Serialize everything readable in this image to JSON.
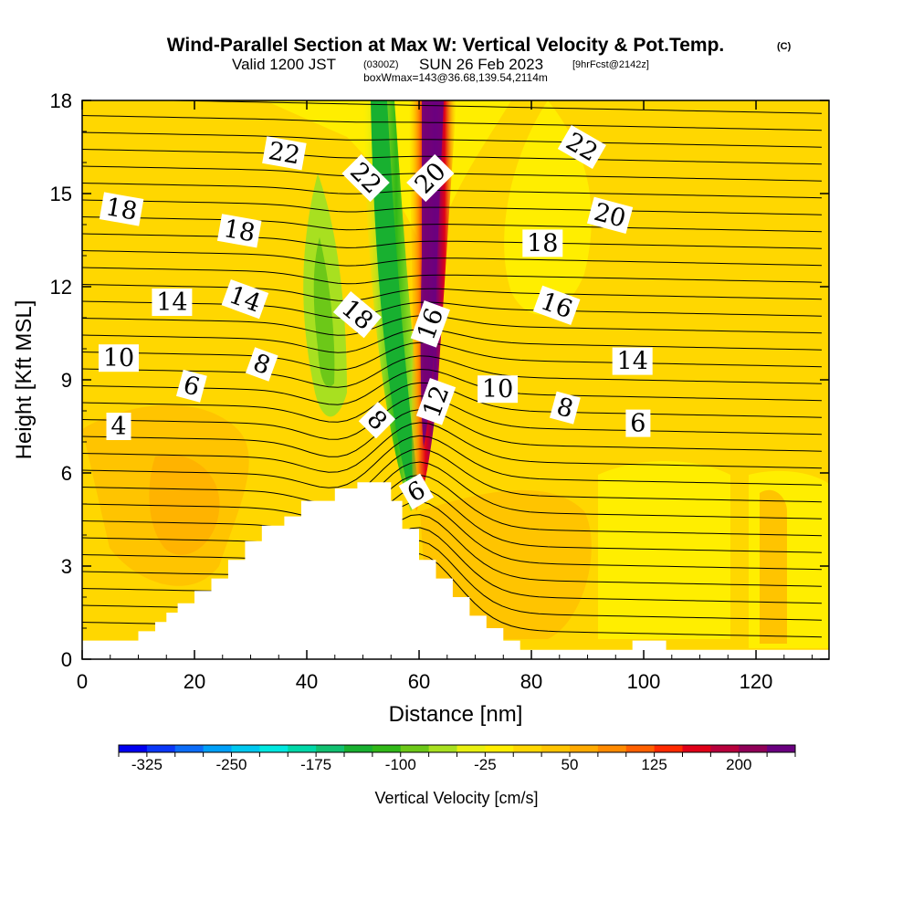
{
  "title": {
    "main": "Wind-Parallel Section at Max W: Vertical Velocity & Pot.Temp.",
    "copyright": "(C)",
    "valid_line_a": "Valid 1200 JST",
    "valid_line_b": "(0300Z)",
    "valid_line_c": "SUN 26 Feb 2023",
    "valid_line_d": "[9hrFcst@2142z]",
    "box_line": "boxWmax=143@36.68,139.54,2114m"
  },
  "chart_data": {
    "type": "heatmap",
    "xlabel": "Distance [nm]",
    "ylabel": "Height [Kft MSL]",
    "xlim": [
      0,
      133
    ],
    "ylim": [
      0,
      18
    ],
    "xticks": [
      0,
      20,
      40,
      60,
      80,
      100,
      120
    ],
    "yticks": [
      0,
      3,
      6,
      9,
      12,
      15,
      18
    ],
    "grid": false,
    "colorbar": {
      "title": "Vertical Velocity [cm/s]",
      "placement": "bottom",
      "min": -350,
      "max": 250,
      "step": 25,
      "tick_labels": [
        "-325",
        "-250",
        "-175",
        "-100",
        "-25",
        "50",
        "125",
        "200"
      ],
      "tick_values": [
        -325,
        -250,
        -175,
        -100,
        -25,
        50,
        125,
        200
      ],
      "colors": [
        "#0000f0",
        "#0a37f8",
        "#0c6cf8",
        "#00a0f8",
        "#00c8f0",
        "#00e8e0",
        "#00d8a8",
        "#10c070",
        "#18b030",
        "#30b818",
        "#6cc818",
        "#a8e020",
        "#e8f010",
        "#ffee00",
        "#ffd700",
        "#ffc400",
        "#ffaa00",
        "#ff8a00",
        "#ff6000",
        "#ff2a00",
        "#e00018",
        "#b8003c",
        "#900058",
        "#6a0080"
      ]
    },
    "terrain_profile": [
      [
        0,
        0.6
      ],
      [
        10,
        0.6
      ],
      [
        10,
        0.9
      ],
      [
        13,
        0.9
      ],
      [
        13,
        1.2
      ],
      [
        15,
        1.2
      ],
      [
        15,
        1.5
      ],
      [
        17,
        1.5
      ],
      [
        17,
        1.8
      ],
      [
        20,
        1.8
      ],
      [
        20,
        2.2
      ],
      [
        23,
        2.2
      ],
      [
        23,
        2.6
      ],
      [
        26,
        2.6
      ],
      [
        26,
        3.2
      ],
      [
        29,
        3.2
      ],
      [
        29,
        3.8
      ],
      [
        32,
        3.8
      ],
      [
        32,
        4.3
      ],
      [
        36,
        4.3
      ],
      [
        36,
        4.6
      ],
      [
        39,
        4.6
      ],
      [
        39,
        5.1
      ],
      [
        45,
        5.1
      ],
      [
        45,
        5.5
      ],
      [
        49,
        5.5
      ],
      [
        49,
        5.7
      ],
      [
        55,
        5.7
      ],
      [
        55,
        5.1
      ],
      [
        57,
        5.1
      ],
      [
        57,
        4.2
      ],
      [
        60,
        4.2
      ],
      [
        60,
        3.2
      ],
      [
        63,
        3.2
      ],
      [
        63,
        2.6
      ],
      [
        66,
        2.6
      ],
      [
        66,
        2.0
      ],
      [
        69,
        2.0
      ],
      [
        69,
        1.4
      ],
      [
        72,
        1.4
      ],
      [
        72,
        1.0
      ],
      [
        75,
        1.0
      ],
      [
        75,
        0.6
      ],
      [
        78,
        0.6
      ],
      [
        78,
        0.3
      ],
      [
        98,
        0.3
      ],
      [
        98,
        0.6
      ],
      [
        104,
        0.6
      ],
      [
        104,
        0.3
      ],
      [
        133,
        0.3
      ]
    ],
    "velocity_features": [
      {
        "name": "Updraft core",
        "x": 61.5,
        "y_range": [
          6.0,
          18.0
        ],
        "max_cm_s": 250
      },
      {
        "name": "Downdraft band",
        "x": 51.0,
        "y_range": [
          6.0,
          18.0
        ],
        "min_cm_s": -100
      },
      {
        "name": "Secondary downdraft",
        "x": 41.5,
        "y_range": [
          9.0,
          15.5
        ],
        "min_cm_s": -60
      }
    ],
    "theta_contour_labels": [
      {
        "text": "22",
        "x": 36,
        "y": 16.3,
        "angle": 10
      },
      {
        "text": "22",
        "x": 50.5,
        "y": 15.5,
        "angle": 45
      },
      {
        "text": "20",
        "x": 62,
        "y": 15.5,
        "angle": -45
      },
      {
        "text": "22",
        "x": 89,
        "y": 16.5,
        "angle": 30
      },
      {
        "text": "18",
        "x": 7,
        "y": 14.5,
        "angle": 10
      },
      {
        "text": "18",
        "x": 28,
        "y": 13.8,
        "angle": 10
      },
      {
        "text": "18",
        "x": 82,
        "y": 13.4,
        "angle": 0
      },
      {
        "text": "20",
        "x": 94,
        "y": 14.3,
        "angle": 15
      },
      {
        "text": "14",
        "x": 16,
        "y": 11.5,
        "angle": 0
      },
      {
        "text": "14",
        "x": 29,
        "y": 11.6,
        "angle": 20
      },
      {
        "text": "18",
        "x": 49,
        "y": 11.1,
        "angle": 40
      },
      {
        "text": "16",
        "x": 62,
        "y": 10.8,
        "angle": -70
      },
      {
        "text": "16",
        "x": 84.5,
        "y": 11.4,
        "angle": 20
      },
      {
        "text": "10",
        "x": 6.5,
        "y": 9.7,
        "angle": 0
      },
      {
        "text": "8",
        "x": 32,
        "y": 9.5,
        "angle": 20
      },
      {
        "text": "6",
        "x": 19.5,
        "y": 8.8,
        "angle": 15
      },
      {
        "text": "14",
        "x": 98,
        "y": 9.6,
        "angle": 0
      },
      {
        "text": "10",
        "x": 74,
        "y": 8.7,
        "angle": 0
      },
      {
        "text": "12",
        "x": 63,
        "y": 8.3,
        "angle": -70
      },
      {
        "text": "8",
        "x": 86,
        "y": 8.1,
        "angle": 15
      },
      {
        "text": "6",
        "x": 99,
        "y": 7.6,
        "angle": 0
      },
      {
        "text": "8",
        "x": 52.5,
        "y": 7.7,
        "angle": 45
      },
      {
        "text": "4",
        "x": 6.5,
        "y": 7.5,
        "angle": 0
      },
      {
        "text": "6",
        "x": 59.5,
        "y": 5.4,
        "angle": -30
      }
    ]
  }
}
